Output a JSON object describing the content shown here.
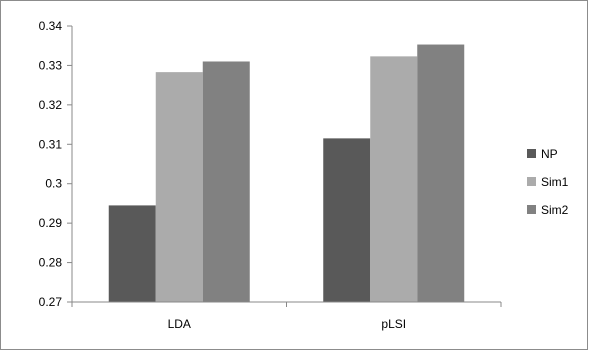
{
  "chart_data": {
    "type": "bar",
    "categories": [
      "LDA",
      "pLSI"
    ],
    "series": [
      {
        "name": "NP",
        "values": [
          0.2945,
          0.3115
        ],
        "color": "#595959"
      },
      {
        "name": "Sim1",
        "values": [
          0.3283,
          0.3323
        ],
        "color": "#ababab"
      },
      {
        "name": "Sim2",
        "values": [
          0.331,
          0.3353
        ],
        "color": "#818181"
      }
    ],
    "ylim": [
      0.27,
      0.34
    ],
    "yticks": [
      "0.27",
      "0.28",
      "0.29",
      "0.3",
      "0.31",
      "0.32",
      "0.33",
      "0.34"
    ],
    "grid": false,
    "legend_position": "right",
    "title": "",
    "xlabel": "",
    "ylabel": ""
  },
  "colors": {
    "axis": "#888888",
    "frame": "#8c8c8c"
  }
}
